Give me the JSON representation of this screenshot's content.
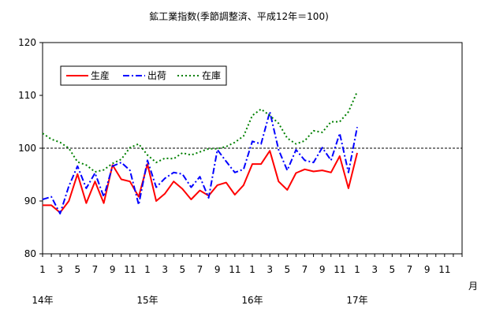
{
  "chart_data": {
    "type": "line",
    "title": "鉱工業指数(季節調整済、平成12年＝100)",
    "ylim": [
      80,
      120
    ],
    "yticks": [
      80,
      90,
      100,
      110,
      120
    ],
    "reference_line": 100,
    "x_tick_labels": [
      "1",
      "3",
      "5",
      "7",
      "9",
      "11",
      "1",
      "3",
      "5",
      "7",
      "9",
      "11",
      "1",
      "3",
      "5",
      "7",
      "9",
      "11",
      "1",
      "3",
      "5",
      "7",
      "9",
      "11"
    ],
    "year_labels": [
      "14年",
      "15年",
      "16年",
      "17年"
    ],
    "x_unit_label": "月",
    "series": [
      {
        "name": "生産",
        "color": "#ff0000",
        "style": "solid",
        "values": [
          89.2,
          89.2,
          87.8,
          90.0,
          95.1,
          89.6,
          93.7,
          89.6,
          96.8,
          94.1,
          93.7,
          90.8,
          97.0,
          90.0,
          91.4,
          93.7,
          92.3,
          90.3,
          92.0,
          91.0,
          93.0,
          93.5,
          91.2,
          93.0,
          97.0,
          97.0,
          99.5,
          93.7,
          92.1,
          95.3,
          96.0,
          95.6,
          95.8,
          95.4,
          98.5,
          92.4,
          99.1
        ]
      },
      {
        "name": "出荷",
        "color": "#0000ff",
        "style": "dashdot",
        "values": [
          90.3,
          90.8,
          87.6,
          92.8,
          96.6,
          92.4,
          95.3,
          90.8,
          96.6,
          97.3,
          95.8,
          89.3,
          97.7,
          92.6,
          94.3,
          95.4,
          95.1,
          92.6,
          94.6,
          90.6,
          99.7,
          97.5,
          95.4,
          96.0,
          101.3,
          100.8,
          106.9,
          99.7,
          95.8,
          99.7,
          97.7,
          97.3,
          100.1,
          97.7,
          102.8,
          95.4,
          104.0
        ]
      },
      {
        "name": "在庫",
        "color": "#008000",
        "style": "dotted",
        "values": [
          102.8,
          101.7,
          101.1,
          100.0,
          97.4,
          96.8,
          95.5,
          95.9,
          97.1,
          97.9,
          100.1,
          100.8,
          98.7,
          97.3,
          98.1,
          98.0,
          99.1,
          98.7,
          99.3,
          99.9,
          99.9,
          100.3,
          101.1,
          102.3,
          106.2,
          107.4,
          106.2,
          104.7,
          101.9,
          100.8,
          101.4,
          103.3,
          103.0,
          105.0,
          105.0,
          106.9,
          110.7
        ]
      }
    ],
    "legend_position": "top-left inside plot"
  }
}
